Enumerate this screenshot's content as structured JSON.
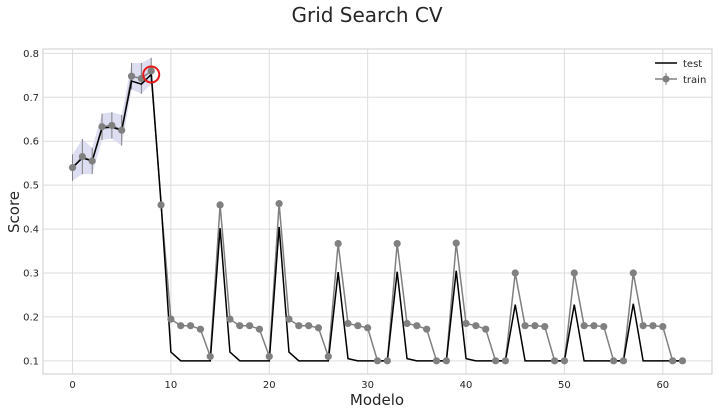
{
  "chart_data": {
    "type": "line",
    "title": "Grid Search CV",
    "xlabel": "Modelo",
    "ylabel": "Score",
    "xlim": [
      -3,
      65
    ],
    "ylim": [
      0.07,
      0.81
    ],
    "xticks": [
      "0",
      "10",
      "20",
      "30",
      "40",
      "50",
      "60"
    ],
    "yticks": [
      "0.1",
      "0.2",
      "0.3",
      "0.4",
      "0.5",
      "0.6",
      "0.7",
      "0.8"
    ],
    "grid": true,
    "legend": "top-right",
    "legend_entries": [
      "test",
      "train"
    ],
    "highlight": {
      "x": 8,
      "y": 0.752,
      "color": "#e41a1c"
    },
    "series": [
      {
        "name": "test",
        "color": "#000000",
        "x": [
          0,
          1,
          2,
          3,
          4,
          5,
          6,
          7,
          8,
          9,
          10,
          11,
          12,
          13,
          14,
          15,
          16,
          17,
          18,
          19,
          20,
          21,
          22,
          23,
          24,
          25,
          26,
          27,
          28,
          29,
          30,
          31,
          32,
          33,
          34,
          35,
          36,
          37,
          38,
          39,
          40,
          41,
          42,
          43,
          44,
          45,
          46,
          47,
          48,
          49,
          50,
          51,
          52,
          53,
          54,
          55,
          56,
          57,
          58,
          59,
          60,
          61,
          62
        ],
        "values": [
          0.54,
          0.562,
          0.555,
          0.63,
          0.632,
          0.625,
          0.737,
          0.73,
          0.752,
          0.46,
          0.12,
          0.1,
          0.1,
          0.1,
          0.1,
          0.402,
          0.12,
          0.1,
          0.1,
          0.1,
          0.1,
          0.405,
          0.12,
          0.1,
          0.1,
          0.1,
          0.1,
          0.302,
          0.105,
          0.1,
          0.1,
          0.1,
          0.1,
          0.303,
          0.105,
          0.1,
          0.1,
          0.1,
          0.1,
          0.305,
          0.105,
          0.1,
          0.1,
          0.1,
          0.1,
          0.228,
          0.1,
          0.1,
          0.1,
          0.1,
          0.1,
          0.228,
          0.1,
          0.1,
          0.1,
          0.1,
          0.1,
          0.23,
          0.1,
          0.1,
          0.1,
          0.1,
          0.1
        ]
      },
      {
        "name": "train",
        "color": "#808080",
        "band_color": "#d8d8f0",
        "x": [
          0,
          1,
          2,
          3,
          4,
          5,
          6,
          7,
          8,
          9,
          10,
          11,
          12,
          13,
          14,
          15,
          16,
          17,
          18,
          19,
          20,
          21,
          22,
          23,
          24,
          25,
          26,
          27,
          28,
          29,
          30,
          31,
          32,
          33,
          34,
          35,
          36,
          37,
          38,
          39,
          40,
          41,
          42,
          43,
          44,
          45,
          46,
          47,
          48,
          49,
          50,
          51,
          52,
          53,
          54,
          55,
          56,
          57,
          58,
          59,
          60,
          61,
          62
        ],
        "values": [
          0.54,
          0.565,
          0.555,
          0.633,
          0.636,
          0.625,
          0.748,
          0.743,
          0.76,
          0.455,
          0.195,
          0.18,
          0.18,
          0.172,
          0.11,
          0.455,
          0.195,
          0.18,
          0.18,
          0.172,
          0.11,
          0.458,
          0.195,
          0.18,
          0.18,
          0.175,
          0.11,
          0.367,
          0.185,
          0.18,
          0.175,
          0.1,
          0.1,
          0.367,
          0.185,
          0.18,
          0.172,
          0.1,
          0.1,
          0.368,
          0.185,
          0.18,
          0.172,
          0.1,
          0.1,
          0.3,
          0.18,
          0.18,
          0.178,
          0.1,
          0.1,
          0.3,
          0.18,
          0.18,
          0.178,
          0.1,
          0.1,
          0.3,
          0.18,
          0.18,
          0.178,
          0.1,
          0.1
        ],
        "error": [
          0.03,
          0.04,
          0.03,
          0.03,
          0.03,
          0.035,
          0.03,
          0.035,
          0.03,
          0,
          0,
          0,
          0,
          0,
          0,
          0,
          0,
          0,
          0,
          0,
          0,
          0,
          0,
          0,
          0,
          0,
          0,
          0,
          0,
          0,
          0,
          0,
          0,
          0,
          0,
          0,
          0,
          0,
          0,
          0,
          0,
          0,
          0,
          0,
          0,
          0,
          0,
          0,
          0,
          0,
          0,
          0,
          0,
          0,
          0,
          0,
          0,
          0,
          0,
          0,
          0,
          0,
          0
        ]
      }
    ]
  }
}
